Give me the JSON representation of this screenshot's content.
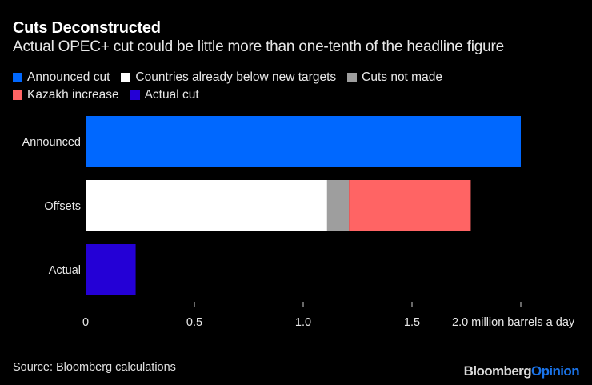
{
  "header": {
    "title": "Cuts Deconstructed",
    "subtitle": "Actual OPEC+ cut could be little more than one-tenth of the headline figure"
  },
  "footer": {
    "source": "Source: Bloomberg calculations",
    "brand_part1": "Bloomberg",
    "brand_part2": "Opinion"
  },
  "chart_data": {
    "type": "bar",
    "orientation": "horizontal",
    "stacked": true,
    "title": "Cuts Deconstructed",
    "subtitle": "Actual OPEC+ cut could be little more than one-tenth of the headline figure",
    "xlabel": "million barrels a day",
    "ylabel": "",
    "xlim": [
      0,
      2.0
    ],
    "x_ticks": [
      0,
      0.5,
      1.0,
      1.5,
      2.0
    ],
    "x_tick_labels": [
      "0",
      "0.5",
      "1.0",
      "1.5",
      "2.0 million barrels a day"
    ],
    "grid": false,
    "legend_position": "top-left",
    "categories": [
      "Announced",
      "Offsets",
      "Actual"
    ],
    "series": [
      {
        "name": "Announced cut",
        "color": "#0068ff",
        "values": [
          2.0,
          0,
          0
        ]
      },
      {
        "name": "Countries already below new targets",
        "color": "#ffffff",
        "values": [
          0,
          1.11,
          0
        ]
      },
      {
        "name": "Cuts not made",
        "color": "#9e9e9e",
        "values": [
          0,
          0.1,
          0
        ]
      },
      {
        "name": "Kazakh increase",
        "color": "#ff6464",
        "values": [
          0,
          0.56,
          0
        ]
      },
      {
        "name": "Actual cut",
        "color": "#2400d6",
        "values": [
          0,
          0,
          0.23
        ]
      }
    ],
    "legend_rows": [
      [
        0,
        1,
        2
      ],
      [
        3,
        4
      ]
    ],
    "source": "Source: Bloomberg calculations"
  }
}
